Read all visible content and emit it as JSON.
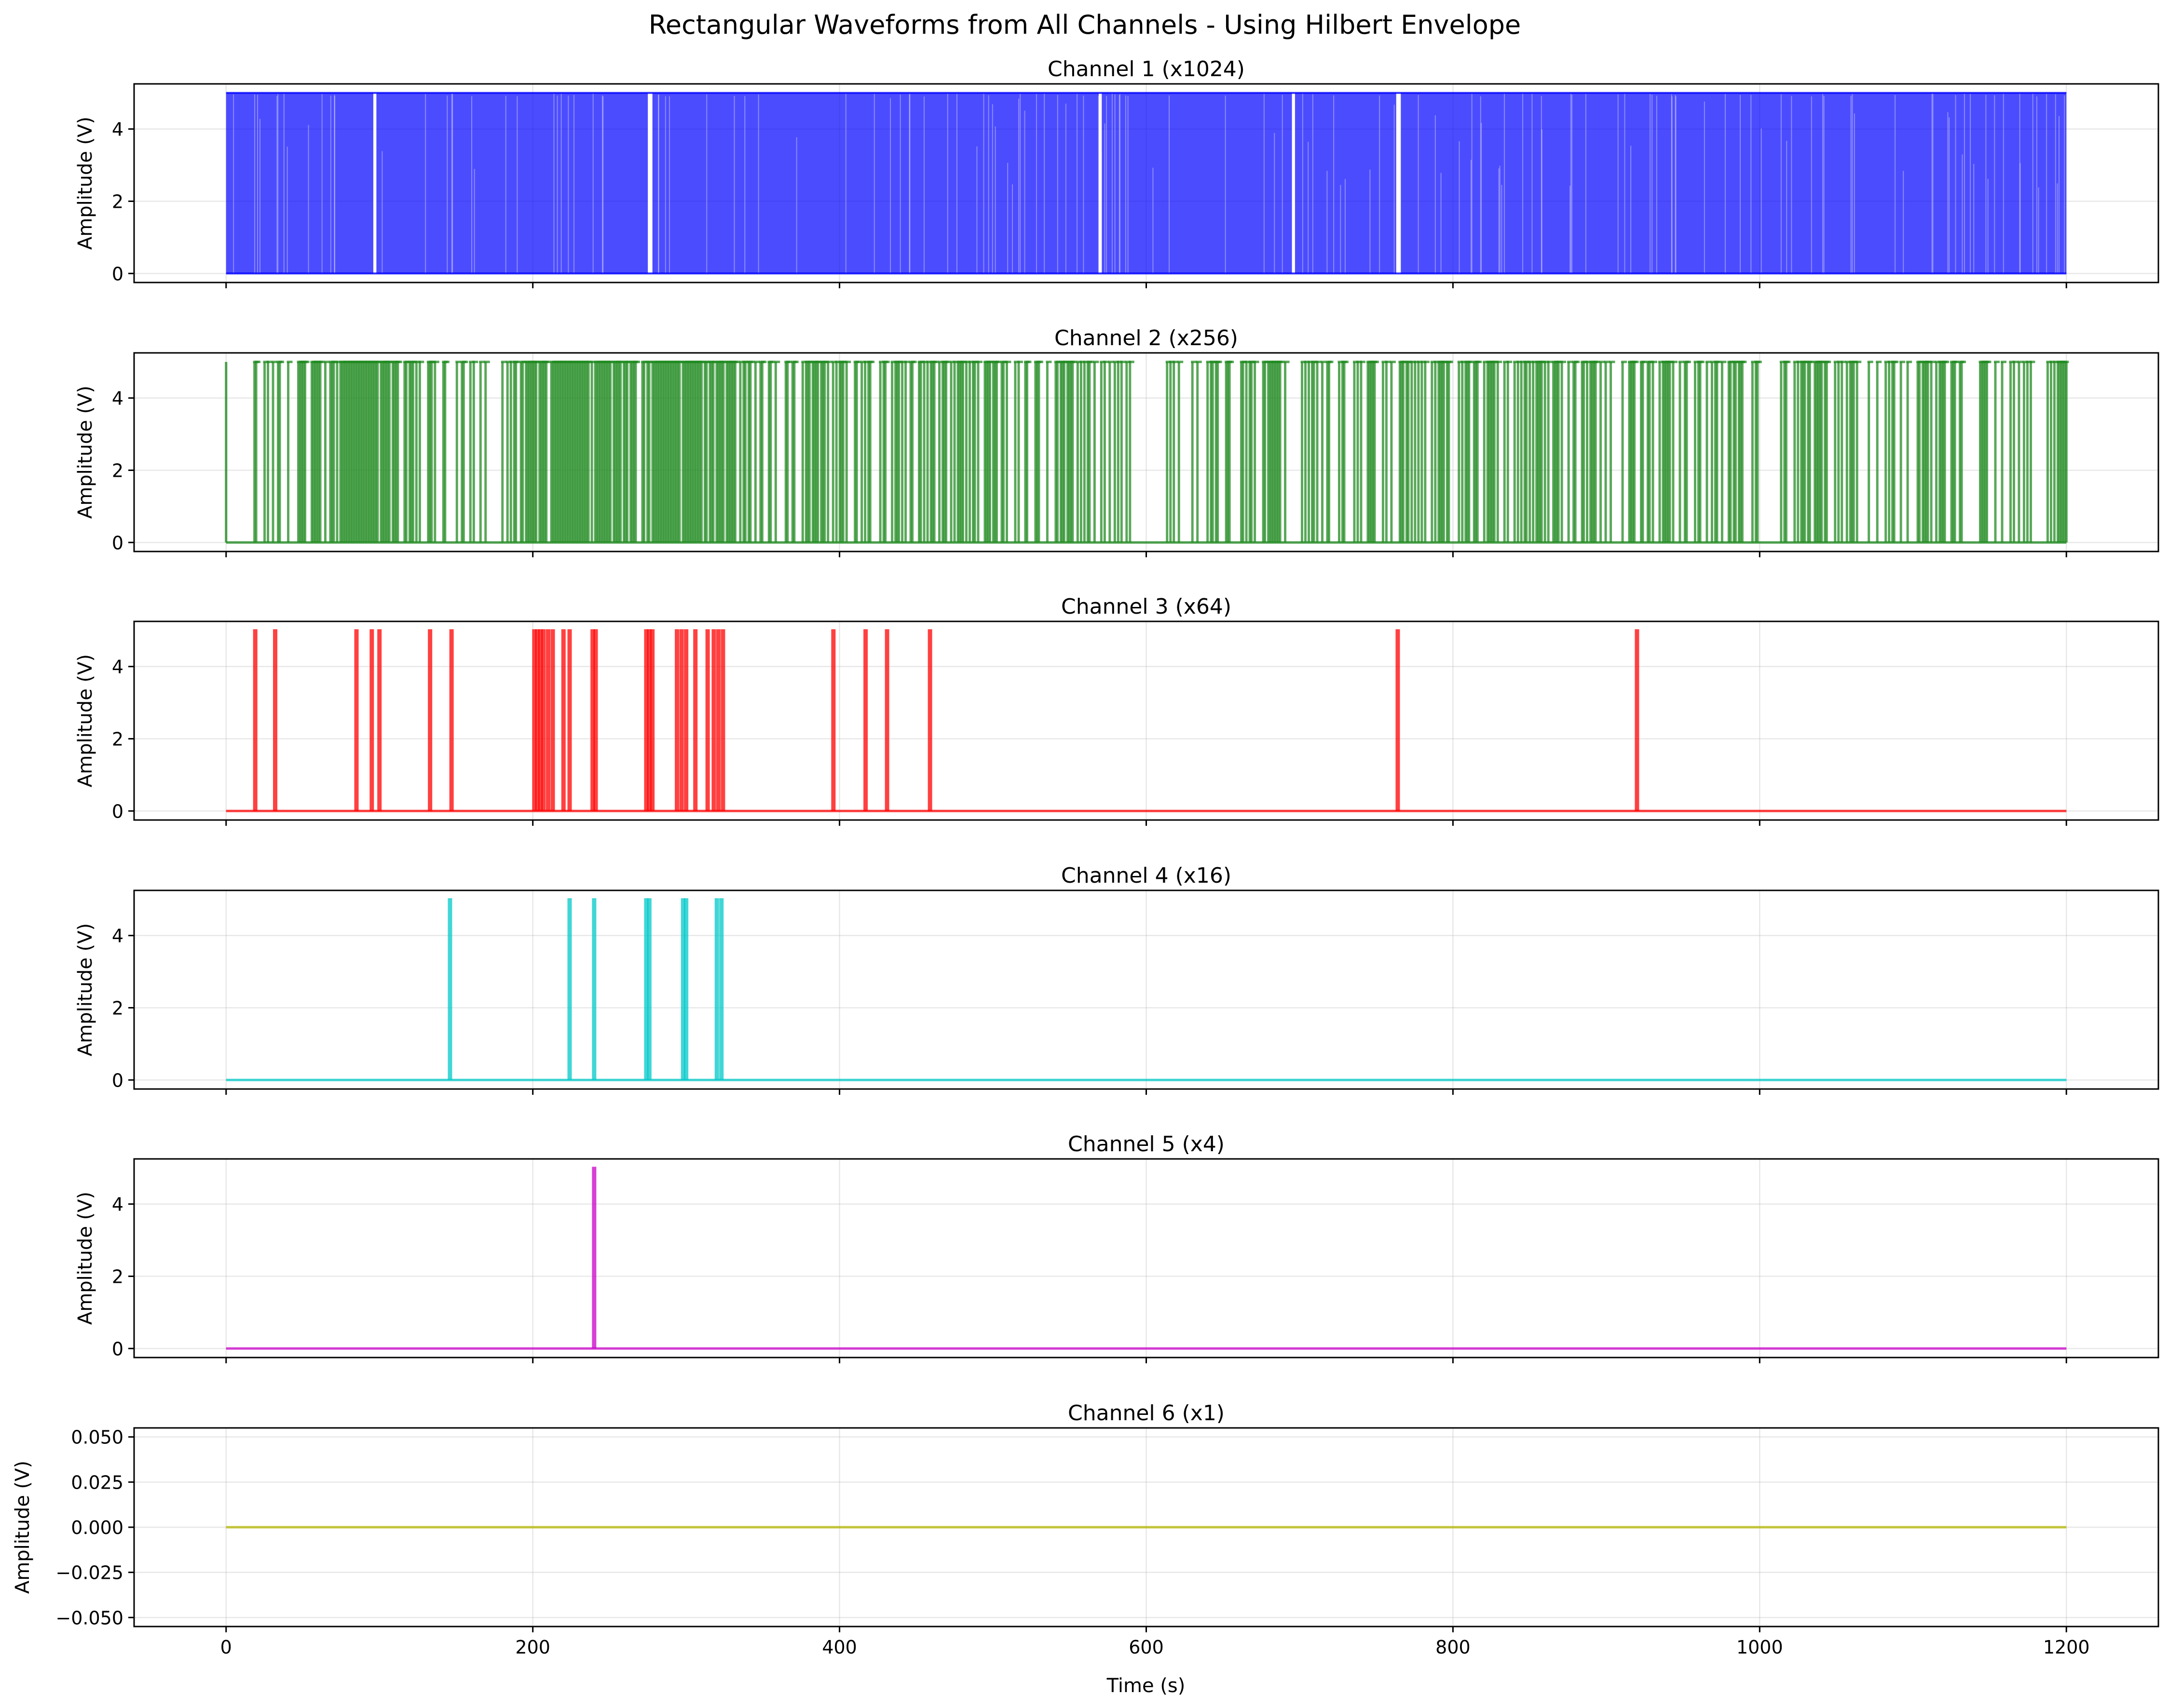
{
  "figure": {
    "suptitle": "Rectangular Waveforms from All Channels - Using Hilbert Envelope",
    "xlabel": "Time (s)"
  },
  "chart_data": [
    {
      "type": "line",
      "title": "Channel 1 (x1024)",
      "ylabel": "Amplitude (V)",
      "color": "#0000ff",
      "xlim": [
        -60,
        1260
      ],
      "ylim": [
        -0.25,
        5.25
      ],
      "xticks": [
        0,
        200,
        400,
        600,
        800,
        1000,
        1200
      ],
      "yticks": [
        0,
        2,
        4
      ],
      "ytick_labels": [
        "0",
        "2",
        "4"
      ],
      "grid": true,
      "high_level": 5,
      "low_level": 0,
      "pulses": "dense",
      "gaps": [
        [
          96,
          98
        ],
        [
          275,
          278
        ],
        [
          569,
          571
        ],
        [
          695,
          697
        ],
        [
          763,
          766
        ]
      ]
    },
    {
      "type": "line",
      "title": "Channel 2 (x256)",
      "ylabel": "Amplitude (V)",
      "color": "#228b22",
      "xlim": [
        -60,
        1260
      ],
      "ylim": [
        -0.25,
        5.25
      ],
      "xticks": [
        0,
        200,
        400,
        600,
        800,
        1000,
        1200
      ],
      "yticks": [
        0,
        2,
        4
      ],
      "ytick_labels": [
        "0",
        "2",
        "4"
      ],
      "grid": true,
      "high_level": 5,
      "low_level": 0,
      "pulses": "moderate",
      "quiet_ranges": [
        [
          595,
          612
        ],
        [
          745,
          752
        ],
        [
          1000,
          1010
        ]
      ]
    },
    {
      "type": "line",
      "title": "Channel 3 (x64)",
      "ylabel": "Amplitude (V)",
      "color": "#ff0000",
      "xlim": [
        -60,
        1260
      ],
      "ylim": [
        -0.25,
        5.25
      ],
      "xticks": [
        0,
        200,
        400,
        600,
        800,
        1000,
        1200
      ],
      "yticks": [
        0,
        2,
        4
      ],
      "ytick_labels": [
        "0",
        "2",
        "4"
      ],
      "grid": true,
      "high_level": 5,
      "low_level": 0,
      "pulse_times": [
        19,
        32,
        85,
        95,
        100,
        133,
        147,
        201,
        203,
        205,
        207,
        210,
        213,
        220,
        224,
        239,
        241,
        274,
        276,
        278,
        294,
        297,
        300,
        306,
        314,
        318,
        321,
        324,
        396,
        417,
        431,
        459,
        764,
        920
      ]
    },
    {
      "type": "line",
      "title": "Channel 4 (x16)",
      "ylabel": "Amplitude (V)",
      "color": "#00c8c8",
      "xlim": [
        -60,
        1260
      ],
      "ylim": [
        -0.25,
        5.25
      ],
      "xticks": [
        0,
        200,
        400,
        600,
        800,
        1000,
        1200
      ],
      "yticks": [
        0,
        2,
        4
      ],
      "ytick_labels": [
        "0",
        "2",
        "4"
      ],
      "grid": true,
      "high_level": 5,
      "low_level": 0,
      "pulse_times": [
        146,
        224,
        240,
        274,
        276,
        298,
        300,
        320,
        323
      ]
    },
    {
      "type": "line",
      "title": "Channel 5 (x4)",
      "ylabel": "Amplitude (V)",
      "color": "#c800c8",
      "xlim": [
        -60,
        1260
      ],
      "ylim": [
        -0.25,
        5.25
      ],
      "xticks": [
        0,
        200,
        400,
        600,
        800,
        1000,
        1200
      ],
      "yticks": [
        0,
        2,
        4
      ],
      "ytick_labels": [
        "0",
        "2",
        "4"
      ],
      "grid": true,
      "high_level": 5,
      "low_level": 0,
      "pulse_times": [
        240
      ]
    },
    {
      "type": "line",
      "title": "Channel 6 (x1)",
      "ylabel": "Amplitude (V)",
      "color": "#b4b400",
      "xlim": [
        -60,
        1260
      ],
      "ylim": [
        -0.055,
        0.055
      ],
      "xticks": [
        0,
        200,
        400,
        600,
        800,
        1000,
        1200
      ],
      "xtick_labels": [
        "0",
        "200",
        "400",
        "600",
        "800",
        "1000",
        "1200"
      ],
      "yticks": [
        -0.05,
        -0.025,
        0.0,
        0.025,
        0.05
      ],
      "ytick_labels": [
        "−0.050",
        "−0.025",
        "0.000",
        "0.025",
        "0.050"
      ],
      "grid": true,
      "high_level": 0,
      "low_level": 0,
      "pulse_times": []
    }
  ]
}
